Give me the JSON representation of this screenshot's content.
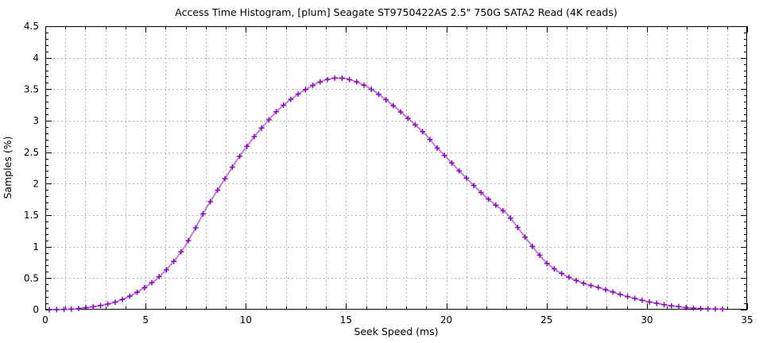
{
  "chart_data": {
    "type": "line",
    "title": "Access Time Histogram, [plum] Seagate ST9750422AS 2.5\" 750G SATA2 Read (4K reads)",
    "xlabel": "Seek Speed (ms)",
    "ylabel": "Samples (%)",
    "xlim": [
      0,
      35
    ],
    "ylim": [
      0,
      4.5
    ],
    "grid": true,
    "legend": "none",
    "x_ticks": {
      "values": [
        0,
        5,
        10,
        15,
        20,
        25,
        30,
        35
      ],
      "labels": [
        "0",
        "5",
        "10",
        "15",
        "20",
        "25",
        "30",
        "35"
      ]
    },
    "y_ticks": {
      "values": [
        0,
        0.5,
        1,
        1.5,
        2,
        2.5,
        3,
        3.5,
        4,
        4.5
      ],
      "labels": [
        "0",
        "0.5",
        "1",
        "1.5",
        "2",
        "2.5",
        "3",
        "3.5",
        "4",
        "4.5"
      ]
    },
    "x_minor_tick_step": 1,
    "y_minor_tick_step": 0.1,
    "x_grid_step_ms": 1,
    "y_grid_step": 0.5,
    "colors": {
      "line": "#c06edc",
      "marker": "#8806c6",
      "grid": "#b4b4b4",
      "axis": "#000000",
      "text": "#000000"
    },
    "series": [
      {
        "name": "plum Seagate ST9750422AS",
        "marker": "plus",
        "marker_interval_ms": 0.365,
        "points": [
          [
            0.2,
            0
          ],
          [
            0.5,
            0
          ],
          [
            1,
            0.005
          ],
          [
            1.5,
            0.01
          ],
          [
            2,
            0.03
          ],
          [
            2.5,
            0.05
          ],
          [
            3,
            0.08
          ],
          [
            3.5,
            0.12
          ],
          [
            4,
            0.18
          ],
          [
            4.5,
            0.26
          ],
          [
            5,
            0.36
          ],
          [
            5.5,
            0.47
          ],
          [
            6,
            0.62
          ],
          [
            6.5,
            0.8
          ],
          [
            7,
            1.02
          ],
          [
            7.5,
            1.3
          ],
          [
            8,
            1.6
          ],
          [
            8.5,
            1.85
          ],
          [
            9,
            2.1
          ],
          [
            9.5,
            2.35
          ],
          [
            10,
            2.57
          ],
          [
            10.5,
            2.78
          ],
          [
            11,
            2.96
          ],
          [
            11.5,
            3.14
          ],
          [
            12,
            3.28
          ],
          [
            12.5,
            3.4
          ],
          [
            13,
            3.5
          ],
          [
            13.5,
            3.59
          ],
          [
            14,
            3.65
          ],
          [
            14.5,
            3.68
          ],
          [
            15,
            3.67
          ],
          [
            15.5,
            3.62
          ],
          [
            16,
            3.55
          ],
          [
            16.5,
            3.45
          ],
          [
            17,
            3.33
          ],
          [
            17.5,
            3.2
          ],
          [
            18,
            3.06
          ],
          [
            18.5,
            2.92
          ],
          [
            19,
            2.77
          ],
          [
            19.5,
            2.58
          ],
          [
            20,
            2.42
          ],
          [
            20.5,
            2.25
          ],
          [
            21,
            2.09
          ],
          [
            21.5,
            1.93
          ],
          [
            22,
            1.78
          ],
          [
            22.5,
            1.65
          ],
          [
            23,
            1.53
          ],
          [
            23.5,
            1.33
          ],
          [
            24,
            1.12
          ],
          [
            24.5,
            0.92
          ],
          [
            25,
            0.74
          ],
          [
            25.5,
            0.62
          ],
          [
            26,
            0.53
          ],
          [
            26.5,
            0.46
          ],
          [
            27,
            0.4
          ],
          [
            27.5,
            0.36
          ],
          [
            28,
            0.31
          ],
          [
            28.5,
            0.26
          ],
          [
            29,
            0.21
          ],
          [
            29.5,
            0.17
          ],
          [
            30,
            0.13
          ],
          [
            30.5,
            0.1
          ],
          [
            31,
            0.07
          ],
          [
            31.5,
            0.05
          ],
          [
            32,
            0.03
          ],
          [
            32.5,
            0.02
          ],
          [
            33,
            0.012
          ],
          [
            33.8,
            0.008
          ]
        ]
      }
    ]
  }
}
